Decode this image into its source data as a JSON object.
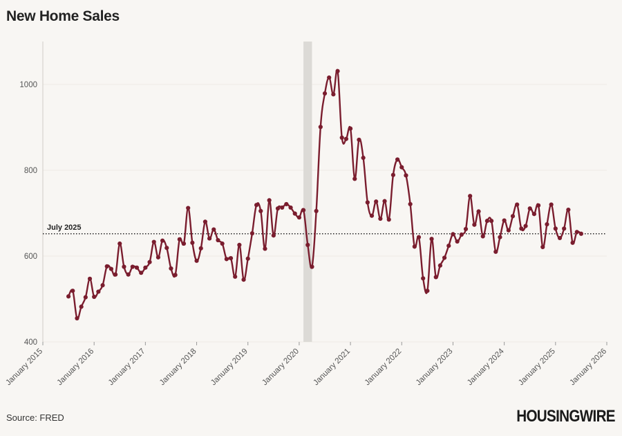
{
  "title": "New Home Sales",
  "source": "Source: FRED",
  "brand": "HOUSINGWIRE",
  "colors": {
    "series": "#7a1d2e",
    "recession_band": "#dcdad6",
    "reference_line": "#222222",
    "background": "#f8f6f3",
    "grid": "#eeebe6"
  },
  "chart_data": {
    "type": "line",
    "title": "New Home Sales",
    "xlabel": "",
    "ylabel": "",
    "ylim": [
      400,
      1100
    ],
    "yticks": [
      400,
      600,
      800,
      1000
    ],
    "xlim": [
      "2015-01",
      "2026-01"
    ],
    "xticks": [
      {
        "date": "2015-01",
        "label": "January 2015"
      },
      {
        "date": "2016-01",
        "label": "January 2016"
      },
      {
        "date": "2017-01",
        "label": "January 2017"
      },
      {
        "date": "2018-01",
        "label": "January 2018"
      },
      {
        "date": "2019-01",
        "label": "January 2019"
      },
      {
        "date": "2020-01",
        "label": "January 2020"
      },
      {
        "date": "2021-01",
        "label": "January 2021"
      },
      {
        "date": "2022-01",
        "label": "January 2022"
      },
      {
        "date": "2023-01",
        "label": "January 2023"
      },
      {
        "date": "2024-01",
        "label": "January 2024"
      },
      {
        "date": "2025-01",
        "label": "January 2025"
      },
      {
        "date": "2026-01",
        "label": "January 2026"
      }
    ],
    "grid": true,
    "shaded_period": {
      "start": "2020-02",
      "end": "2020-04"
    },
    "reference_line": {
      "value": 652,
      "label": "July 2025"
    },
    "series": [
      {
        "start": "2015-07",
        "values": [
          506,
          519,
          455,
          482,
          504,
          547,
          505,
          517,
          532,
          576,
          570,
          557,
          629,
          575,
          557,
          575,
          573,
          561,
          573,
          586,
          633,
          597,
          636,
          619,
          571,
          556,
          639,
          629,
          712,
          631,
          589,
          618,
          680,
          641,
          662,
          637,
          629,
          593,
          595,
          552,
          626,
          545,
          594,
          653,
          719,
          705,
          617,
          730,
          648,
          711,
          713,
          721,
          713,
          699,
          690,
          707,
          626,
          575,
          705,
          901,
          979,
          1016,
          977,
          1031,
          876,
          873,
          897,
          780,
          871,
          829,
          725,
          694,
          727,
          687,
          728,
          685,
          789,
          825,
          807,
          788,
          721,
          622,
          644,
          548,
          519,
          640,
          551,
          578,
          596,
          624,
          651,
          634,
          650,
          663,
          740,
          673,
          704,
          646,
          682,
          682,
          610,
          644,
          683,
          660,
          693,
          720,
          664,
          670,
          711,
          698,
          718,
          621,
          674,
          720,
          664,
          642,
          664,
          708,
          631,
          656,
          652
        ]
      }
    ]
  }
}
